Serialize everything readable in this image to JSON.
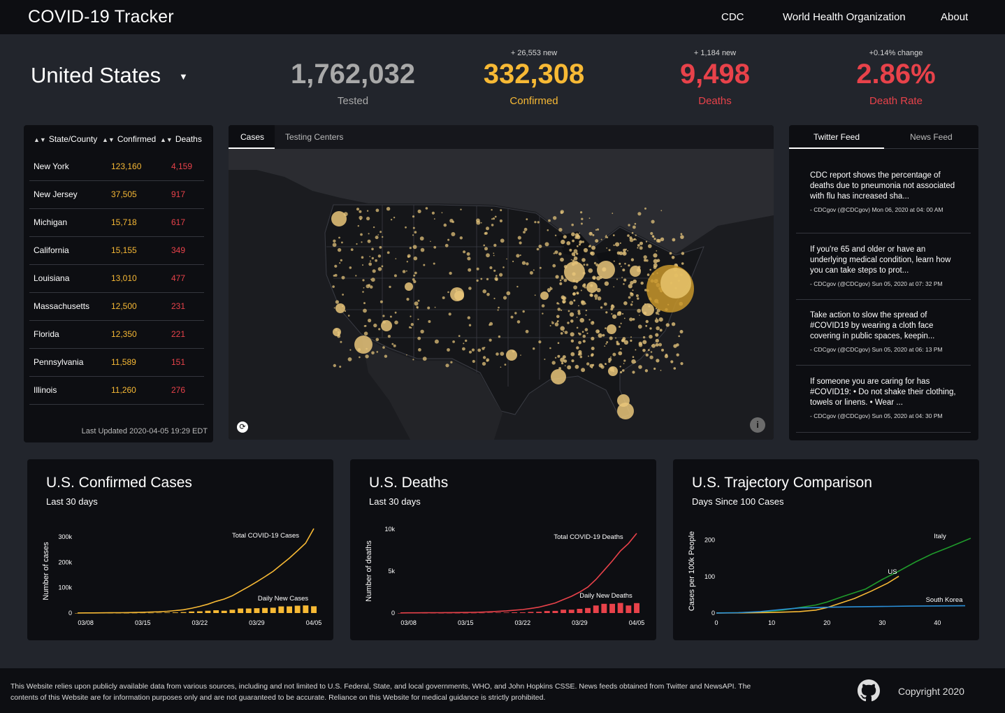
{
  "nav": {
    "brand": "COVID-19 Tracker",
    "links": [
      "CDC",
      "World Health Organization",
      "About"
    ]
  },
  "header": {
    "country": "United States",
    "stats": [
      {
        "delta": "",
        "value": "1,762,032",
        "label": "Tested",
        "color": "#a9a9a9"
      },
      {
        "delta": "+ 26,553 new",
        "value": "332,308",
        "label": "Confirmed",
        "color": "#f7b935"
      },
      {
        "delta": "+ 1,184 new",
        "value": "9,498",
        "label": "Deaths",
        "color": "#e8424a"
      },
      {
        "delta": "+0.14% change",
        "value": "2.86%",
        "label": "Death Rate",
        "color": "#e8424a"
      }
    ]
  },
  "table": {
    "headers": [
      "State/County",
      "Confirmed",
      "Deaths"
    ],
    "rows": [
      {
        "name": "New York",
        "confirmed": "123,160",
        "deaths": "4,159"
      },
      {
        "name": "New Jersey",
        "confirmed": "37,505",
        "deaths": "917"
      },
      {
        "name": "Michigan",
        "confirmed": "15,718",
        "deaths": "617"
      },
      {
        "name": "California",
        "confirmed": "15,155",
        "deaths": "349"
      },
      {
        "name": "Louisiana",
        "confirmed": "13,010",
        "deaths": "477"
      },
      {
        "name": "Massachusetts",
        "confirmed": "12,500",
        "deaths": "231"
      },
      {
        "name": "Florida",
        "confirmed": "12,350",
        "deaths": "221"
      },
      {
        "name": "Pennsylvania",
        "confirmed": "11,589",
        "deaths": "151"
      },
      {
        "name": "Illinois",
        "confirmed": "11,260",
        "deaths": "276"
      }
    ],
    "updated": "Last Updated 2020-04-05 19:29 EDT"
  },
  "map": {
    "tabs": [
      "Cases",
      "Testing Centers"
    ],
    "active_tab": "Cases"
  },
  "feed": {
    "tabs": [
      "Twitter Feed",
      "News Feed"
    ],
    "active_tab": "Twitter Feed",
    "items": [
      {
        "text": "CDC report shows the percentage of deaths due to pneumonia not associated with flu has increased sha...",
        "meta": "- CDCgov (@CDCgov) Mon 06, 2020 at 04: 00 AM"
      },
      {
        "text": "If you're 65 and older or have an underlying medical condition, learn how you can take steps to prot...",
        "meta": "- CDCgov (@CDCgov) Sun 05, 2020 at 07: 32 PM"
      },
      {
        "text": "Take action to slow the spread of #COVID19 by wearing a cloth face covering in public spaces, keepin...",
        "meta": "- CDCgov (@CDCgov) Sun 05, 2020 at 06: 13 PM"
      },
      {
        "text": "If someone you are caring for has #COVID19: • Do not shake their clothing, towels or linens. • Wear ...",
        "meta": "- CDCgov (@CDCgov) Sun 05, 2020 at 04: 30 PM"
      }
    ]
  },
  "charts": {
    "confirmed": {
      "title": "U.S. Confirmed Cases",
      "subtitle": "Last 30 days"
    },
    "deaths": {
      "title": "U.S. Deaths",
      "subtitle": "Last 30 days"
    },
    "trajectory": {
      "title": "U.S. Trajectory Comparison",
      "subtitle": "Days Since 100 Cases"
    }
  },
  "colors": {
    "amber": "#f7b935",
    "red": "#e8424a",
    "green": "#1f9a2b",
    "blue": "#2a8fd8",
    "gray": "#a9a9a9"
  },
  "chart_data": [
    {
      "type": "line",
      "title": "U.S. Confirmed Cases",
      "subtitle": "Last 30 days",
      "ylabel": "Number of cases",
      "xlabel": "",
      "x_ticks": [
        "03/08",
        "03/15",
        "03/22",
        "03/29",
        "04/05"
      ],
      "y_ticks": [
        {
          "v": 0,
          "label": "0"
        },
        {
          "v": 100000,
          "label": "100k"
        },
        {
          "v": 200000,
          "label": "200k"
        },
        {
          "v": 300000,
          "label": "300k"
        }
      ],
      "ylim": [
        0,
        330000
      ],
      "x": [
        "03/07",
        "03/08",
        "03/09",
        "03/10",
        "03/11",
        "03/12",
        "03/13",
        "03/14",
        "03/15",
        "03/16",
        "03/17",
        "03/18",
        "03/19",
        "03/20",
        "03/21",
        "03/22",
        "03/23",
        "03/24",
        "03/25",
        "03/26",
        "03/27",
        "03/28",
        "03/29",
        "03/30",
        "03/31",
        "04/01",
        "04/02",
        "04/03",
        "04/04",
        "04/05"
      ],
      "series": [
        {
          "name": "Total COVID-19 Cases",
          "kind": "line",
          "color": "#f7b935",
          "values": [
            400,
            500,
            600,
            800,
            1000,
            1300,
            1700,
            2200,
            2900,
            3800,
            5000,
            7000,
            9500,
            13000,
            19000,
            26000,
            35000,
            46000,
            55000,
            68000,
            86000,
            104000,
            123000,
            143000,
            164000,
            190000,
            216000,
            245000,
            275000,
            332308
          ]
        },
        {
          "name": "Daily New Cases",
          "kind": "bar",
          "color": "#f7b935",
          "values": [
            100,
            100,
            100,
            200,
            200,
            300,
            400,
            500,
            700,
            900,
            1200,
            2000,
            2500,
            3500,
            6000,
            7000,
            9000,
            11000,
            9000,
            13000,
            18000,
            18000,
            19000,
            20000,
            21000,
            26000,
            26000,
            29000,
            30000,
            26553
          ]
        }
      ]
    },
    {
      "type": "line",
      "title": "U.S. Deaths",
      "subtitle": "Last 30 days",
      "ylabel": "Number of deaths",
      "xlabel": "",
      "x_ticks": [
        "03/08",
        "03/15",
        "03/22",
        "03/29",
        "04/05"
      ],
      "y_ticks": [
        {
          "v": 0,
          "label": "0"
        },
        {
          "v": 5000,
          "label": "5k"
        },
        {
          "v": 10000,
          "label": "10k"
        }
      ],
      "ylim": [
        0,
        10000
      ],
      "x": [
        "03/07",
        "03/08",
        "03/09",
        "03/10",
        "03/11",
        "03/12",
        "03/13",
        "03/14",
        "03/15",
        "03/16",
        "03/17",
        "03/18",
        "03/19",
        "03/20",
        "03/21",
        "03/22",
        "03/23",
        "03/24",
        "03/25",
        "03/26",
        "03/27",
        "03/28",
        "03/29",
        "03/30",
        "03/31",
        "04/01",
        "04/02",
        "04/03",
        "04/04",
        "04/05"
      ],
      "series": [
        {
          "name": "Total COVID-19 Deaths",
          "kind": "line",
          "color": "#e8424a",
          "values": [
            19,
            21,
            26,
            30,
            38,
            41,
            49,
            57,
            68,
            85,
            108,
            150,
            200,
            260,
            340,
            420,
            550,
            700,
            940,
            1200,
            1600,
            2000,
            2500,
            3100,
            4000,
            5100,
            6200,
            7400,
            8300,
            9498
          ]
        },
        {
          "name": "Daily New Deaths",
          "kind": "bar",
          "color": "#e8424a",
          "values": [
            2,
            2,
            5,
            4,
            8,
            3,
            8,
            8,
            11,
            17,
            23,
            42,
            50,
            60,
            80,
            80,
            130,
            150,
            240,
            260,
            400,
            400,
            500,
            600,
            900,
            1100,
            1100,
            1200,
            900,
            1184
          ]
        }
      ]
    },
    {
      "type": "line",
      "title": "U.S. Trajectory Comparison",
      "subtitle": "Days Since 100 Cases",
      "ylabel": "Cases per 100k People",
      "xlabel": "",
      "x_ticks": [
        0,
        10,
        20,
        30,
        40
      ],
      "y_ticks": [
        {
          "v": 0,
          "label": "0"
        },
        {
          "v": 100,
          "label": "100"
        },
        {
          "v": 200,
          "label": "200"
        }
      ],
      "xlim": [
        0,
        45
      ],
      "ylim": [
        0,
        230
      ],
      "series": [
        {
          "name": "Italy",
          "color": "#1f9a2b",
          "points": [
            [
              0,
              0.3
            ],
            [
              4,
              1
            ],
            [
              8,
              3
            ],
            [
              12,
              8
            ],
            [
              15,
              15
            ],
            [
              18,
              22
            ],
            [
              20,
              30
            ],
            [
              23,
              46
            ],
            [
              27,
              66
            ],
            [
              30,
              92
            ],
            [
              33,
              115
            ],
            [
              36,
              140
            ],
            [
              39,
              162
            ],
            [
              42,
              180
            ],
            [
              46,
              205
            ]
          ]
        },
        {
          "name": "US",
          "color": "#f7b935",
          "points": [
            [
              0,
              0.1
            ],
            [
              5,
              0.5
            ],
            [
              10,
              1.5
            ],
            [
              15,
              4
            ],
            [
              18,
              8
            ],
            [
              20,
              15
            ],
            [
              22,
              25
            ],
            [
              25,
              40
            ],
            [
              28,
              60
            ],
            [
              31,
              82
            ],
            [
              33,
              101
            ]
          ]
        },
        {
          "name": "South Korea",
          "color": "#2a8fd8",
          "points": [
            [
              0,
              0.2
            ],
            [
              4,
              1
            ],
            [
              8,
              4
            ],
            [
              12,
              10
            ],
            [
              15,
              14
            ],
            [
              18,
              15
            ],
            [
              20,
              16
            ],
            [
              25,
              17
            ],
            [
              30,
              18
            ],
            [
              35,
              19
            ],
            [
              40,
              19.5
            ],
            [
              45,
              20
            ]
          ]
        }
      ]
    }
  ],
  "footer": {
    "disclaimer": "This Website relies upon publicly available data from various sources, including and not limited to U.S. Federal, State, and local governments, WHO, and John Hopkins CSSE. News feeds obtained from Twitter and NewsAPI. The contents of this Website are for information purposes only and are not guaranteed to be accurate. Reliance on this Website for medical guidance is strictly prohibited.",
    "copyright": "Copyright 2020"
  }
}
